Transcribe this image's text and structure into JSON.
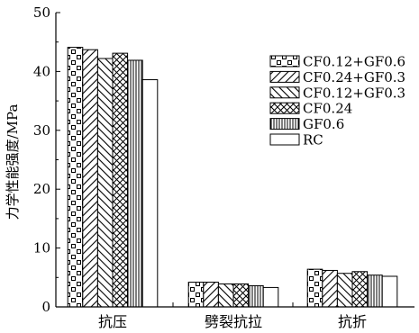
{
  "chart_data": {
    "type": "bar",
    "title": "",
    "xlabel": "",
    "ylabel": "力学性能强度/MPa",
    "ylim": [
      0,
      50
    ],
    "yticks": [
      0,
      10,
      20,
      30,
      40,
      50
    ],
    "grid": false,
    "legend_position": "top-right",
    "categories": [
      "抗压",
      "劈裂抗拉",
      "抗折"
    ],
    "series": [
      {
        "name": "CF0.12+GF0.6",
        "pattern": "brick",
        "values": [
          44.1,
          4.2,
          6.4
        ]
      },
      {
        "name": "CF0.24+GF0.3",
        "pattern": "forward-hatch",
        "values": [
          43.7,
          4.2,
          6.2
        ]
      },
      {
        "name": "CF0.12+GF0.3",
        "pattern": "back-hatch",
        "values": [
          42.2,
          3.9,
          5.7
        ]
      },
      {
        "name": "CF0.24",
        "pattern": "crosshatch",
        "values": [
          43.1,
          3.9,
          6.0
        ]
      },
      {
        "name": "GF0.6",
        "pattern": "vertical-lines",
        "values": [
          41.9,
          3.6,
          5.4
        ]
      },
      {
        "name": "RC",
        "pattern": "blank",
        "values": [
          38.6,
          3.3,
          5.2
        ]
      }
    ]
  }
}
